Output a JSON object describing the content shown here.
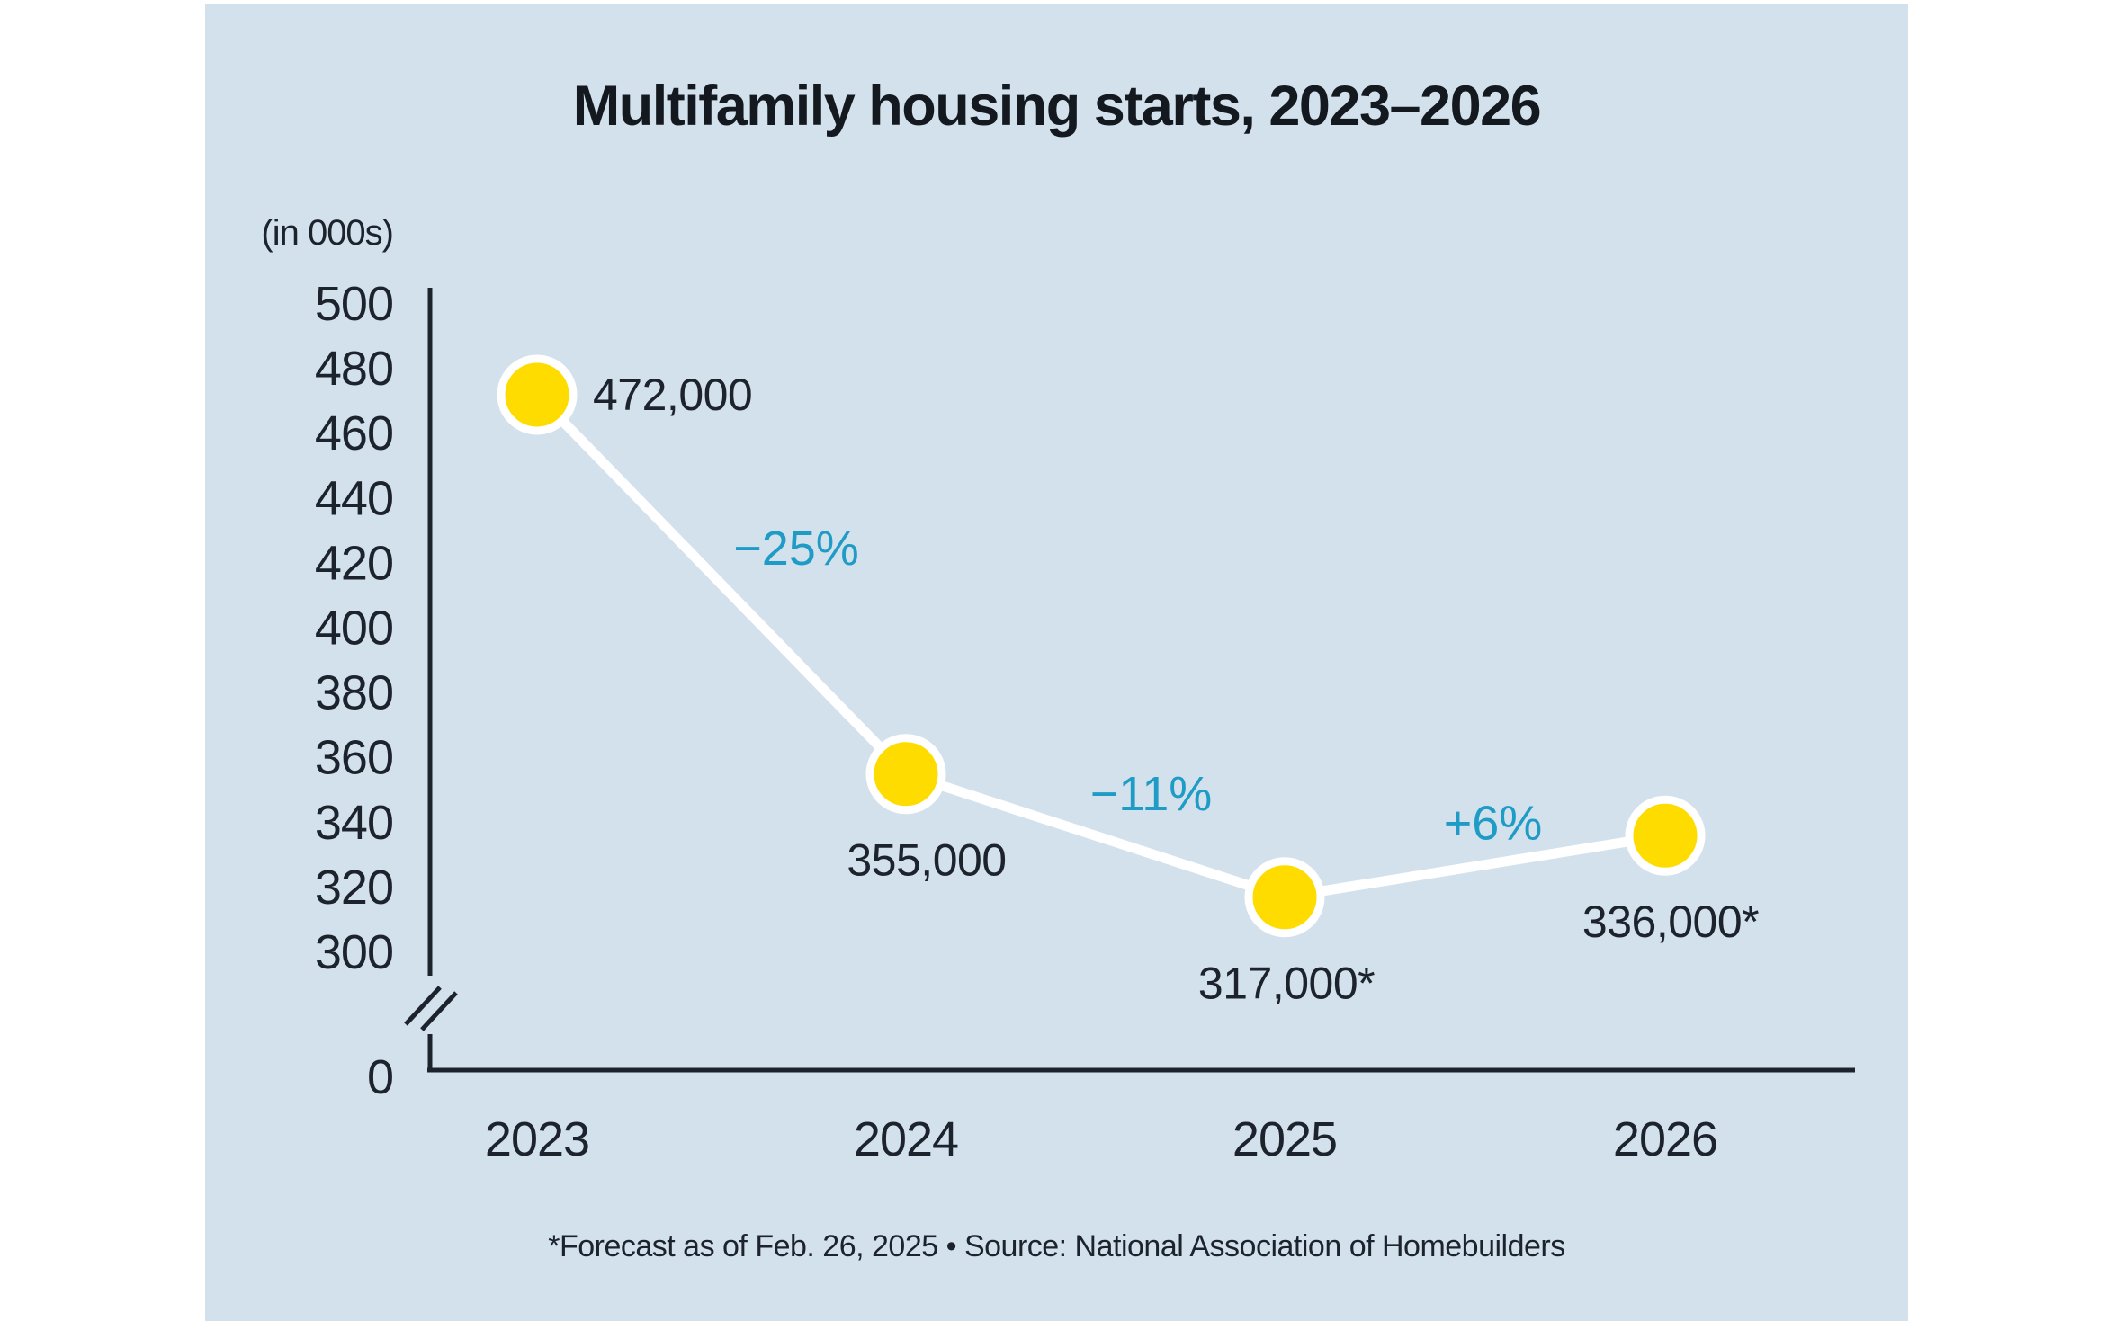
{
  "page": {
    "background": "#ffffff",
    "panel_background": "#d3e1ec"
  },
  "chart_data": {
    "type": "line",
    "title": "Multifamily housing starts, 2023–2026",
    "unit_label": "(in 000s)",
    "categories": [
      "2023",
      "2024",
      "2025",
      "2026"
    ],
    "values": [
      472,
      355,
      317,
      336
    ],
    "point_labels": [
      "472,000",
      "355,000",
      "317,000*",
      "336,000*"
    ],
    "change_labels": [
      "−25%",
      "−11%",
      "+6%"
    ],
    "y_ticks": [
      500,
      480,
      460,
      440,
      420,
      400,
      380,
      360,
      340,
      320,
      300
    ],
    "y_origin_label": "0",
    "y_axis_break": true,
    "ylim_display": [
      300,
      500
    ],
    "grid": "off",
    "legend": "none",
    "footnote": "*Forecast as of Feb. 26, 2025 • Source: National Association of Homebuilders",
    "colors": {
      "marker_fill": "#ffdc00",
      "marker_ring": "#ffffff",
      "line": "#ffffff",
      "axis": "#1c232d",
      "text": "#1c232d",
      "change_text": "#1e9cc6",
      "title_text": "#14191f"
    }
  }
}
